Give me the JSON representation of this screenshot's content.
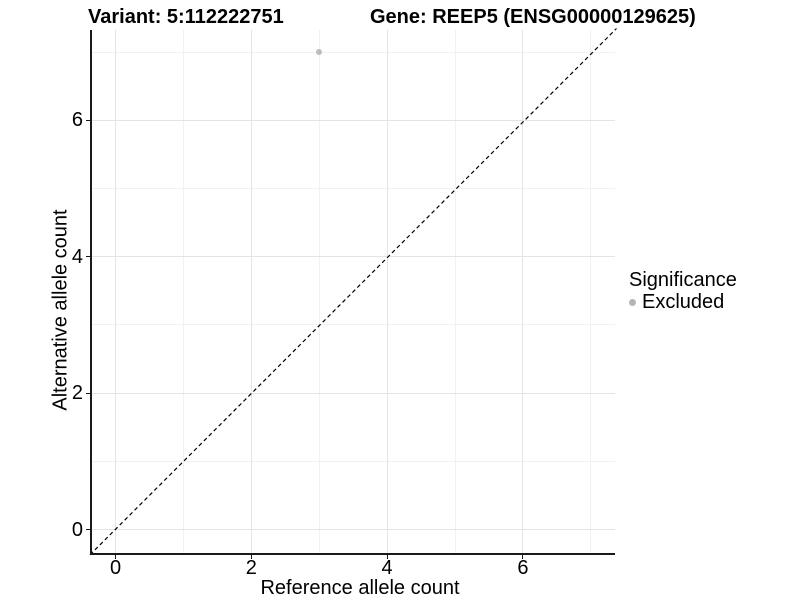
{
  "titles": {
    "variant": "Variant: 5:112222751",
    "gene": "Gene: REEP5 (ENSG00000129625)"
  },
  "axes": {
    "xlabel": "Reference allele count",
    "ylabel": "Alternative allele count",
    "x_tick_labels": [
      "0",
      "2",
      "4",
      "6"
    ],
    "y_tick_labels": [
      "0",
      "2",
      "4",
      "6"
    ]
  },
  "legend": {
    "title": "Significance",
    "item_excluded": "Excluded"
  },
  "colors": {
    "point": "#bdbdbd",
    "legend_point": "#b5b5b5",
    "grid_major": "#e4e4e4",
    "grid_minor": "#f1f1f1",
    "axis": "#1a1a1a",
    "text": "#000000",
    "background": "#ffffff",
    "identity_line": "#000000"
  },
  "chart_data": {
    "type": "scatter",
    "title_left": "Variant: 5:112222751",
    "title_right": "Gene: REEP5 (ENSG00000129625)",
    "xlabel": "Reference allele count",
    "ylabel": "Alternative allele count",
    "xlim": [
      -0.36,
      7.36
    ],
    "ylim": [
      -0.35,
      7.33
    ],
    "x_ticks": [
      0,
      2,
      4,
      6
    ],
    "y_ticks": [
      0,
      2,
      4,
      6
    ],
    "x_grid_major": [
      0,
      2,
      4,
      6
    ],
    "x_grid_minor": [
      1,
      3,
      5,
      7
    ],
    "y_grid_major": [
      0,
      2,
      4,
      6
    ],
    "y_grid_minor": [
      1,
      3,
      5,
      7
    ],
    "grid": true,
    "points": [
      {
        "x": 3,
        "y": 7,
        "series": "Excluded",
        "color": "#bdbdbd"
      }
    ],
    "reference_line": {
      "kind": "identity y=x",
      "style": "dashed",
      "color": "#000000"
    },
    "legend_position": "right",
    "legend_title": "Significance",
    "legend_items": [
      {
        "label": "Excluded",
        "color": "#bdbdbd"
      }
    ]
  }
}
